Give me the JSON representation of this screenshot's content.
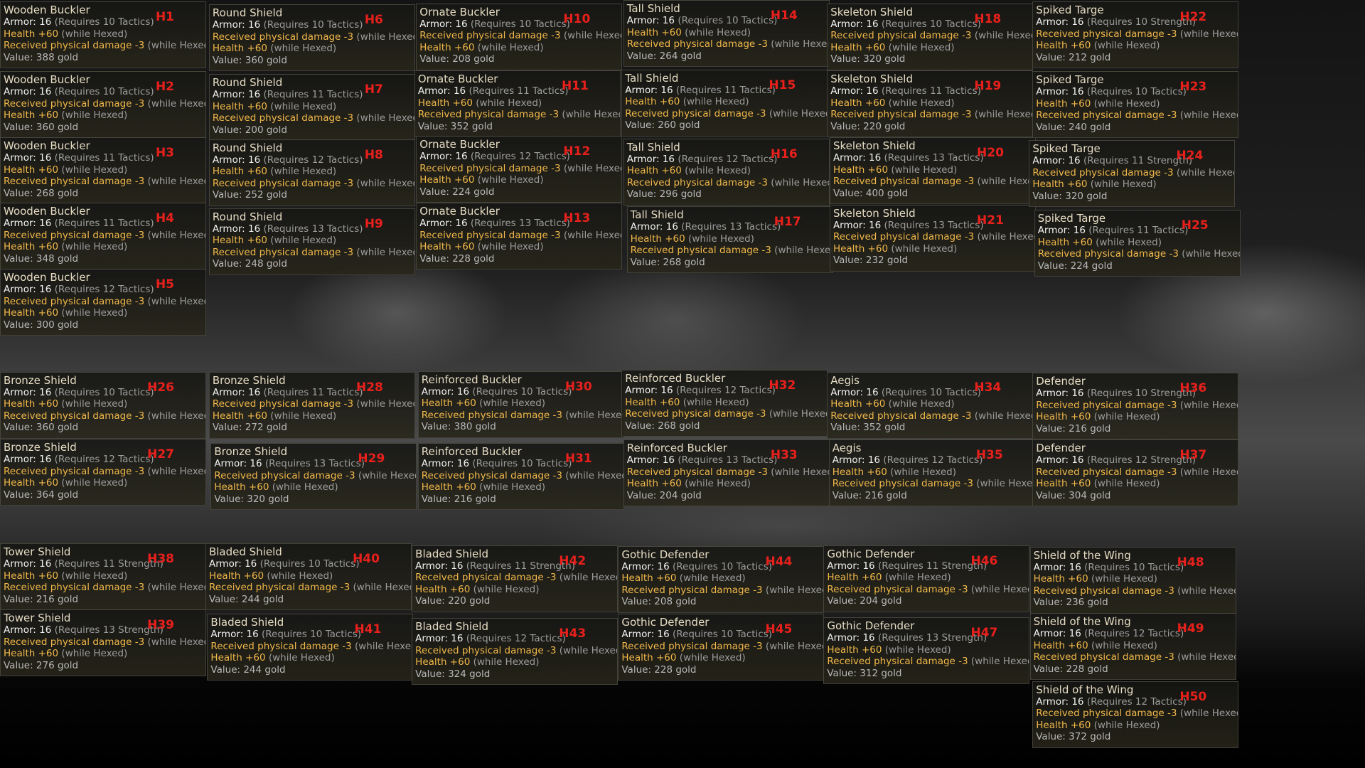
{
  "items": [
    {
      "name": "Wooden Buckler",
      "tag": "H1",
      "armor": "Armor: 16",
      "req": "(Requires 10 Tactics)",
      "mods": [
        {
          "text": "Health +60",
          "cond": "(while Hexed)"
        },
        {
          "text": "Received physical damage -3",
          "cond": "(while Hexed)"
        }
      ],
      "value": "Value: 388 gold"
    },
    {
      "name": "Wooden Buckler",
      "tag": "H2",
      "armor": "Armor: 16",
      "req": "(Requires 10 Tactics)",
      "mods": [
        {
          "text": "Received physical damage -3",
          "cond": "(while Hexed)"
        },
        {
          "text": "Health +60",
          "cond": "(while Hexed)"
        }
      ],
      "value": "Value: 360 gold"
    },
    {
      "name": "Wooden Buckler",
      "tag": "H3",
      "armor": "Armor: 16",
      "req": "(Requires 11 Tactics)",
      "mods": [
        {
          "text": "Health +60",
          "cond": "(while Hexed)"
        },
        {
          "text": "Received physical damage -3",
          "cond": "(while Hexed)"
        }
      ],
      "value": "Value: 268 gold"
    },
    {
      "name": "Wooden Buckler",
      "tag": "H4",
      "armor": "Armor: 16",
      "req": "(Requires 11 Tactics)",
      "mods": [
        {
          "text": "Received physical damage -3",
          "cond": "(while Hexed)"
        },
        {
          "text": "Health +60",
          "cond": "(while Hexed)"
        }
      ],
      "value": "Value: 348 gold"
    },
    {
      "name": "Wooden Buckler",
      "tag": "H5",
      "armor": "Armor: 16",
      "req": "(Requires 12 Tactics)",
      "mods": [
        {
          "text": "Received physical damage -3",
          "cond": "(while Hexed)"
        },
        {
          "text": "Health +60",
          "cond": "(while Hexed)"
        }
      ],
      "value": "Value: 300 gold"
    },
    {
      "name": "Round Shield",
      "tag": "H6",
      "armor": "Armor: 16",
      "req": "(Requires 10 Tactics)",
      "mods": [
        {
          "text": "Received physical damage -3",
          "cond": "(while Hexed)"
        },
        {
          "text": "Health +60",
          "cond": "(while Hexed)"
        }
      ],
      "value": "Value: 360 gold"
    },
    {
      "name": "Round Shield",
      "tag": "H7",
      "armor": "Armor: 16",
      "req": "(Requires 11 Tactics)",
      "mods": [
        {
          "text": "Health +60",
          "cond": "(while Hexed)"
        },
        {
          "text": "Received physical damage -3",
          "cond": "(while Hexed)"
        }
      ],
      "value": "Value: 200 gold"
    },
    {
      "name": "Round Shield",
      "tag": "H8",
      "armor": "Armor: 16",
      "req": "(Requires 12 Tactics)",
      "mods": [
        {
          "text": "Health +60",
          "cond": "(while Hexed)"
        },
        {
          "text": "Received physical damage -3",
          "cond": "(while Hexed)"
        }
      ],
      "value": "Value: 252 gold"
    },
    {
      "name": "Round Shield",
      "tag": "H9",
      "armor": "Armor: 16",
      "req": "(Requires 13 Tactics)",
      "mods": [
        {
          "text": "Health +60",
          "cond": "(while Hexed)"
        },
        {
          "text": "Received physical damage -3",
          "cond": "(while Hexed)"
        }
      ],
      "value": "Value: 248 gold"
    },
    {
      "name": "Ornate Buckler",
      "tag": "H10",
      "armor": "Armor: 16",
      "req": "(Requires 10 Tactics)",
      "mods": [
        {
          "text": "Received physical damage -3",
          "cond": "(while Hexed)"
        },
        {
          "text": "Health +60",
          "cond": "(while Hexed)"
        }
      ],
      "value": "Value: 208 gold"
    },
    {
      "name": "Ornate Buckler",
      "tag": "H11",
      "armor": "Armor: 16",
      "req": "(Requires 11 Tactics)",
      "mods": [
        {
          "text": "Health +60",
          "cond": "(while Hexed)"
        },
        {
          "text": "Received physical damage -3",
          "cond": "(while Hexed)"
        }
      ],
      "value": "Value: 352 gold"
    },
    {
      "name": "Ornate Buckler",
      "tag": "H12",
      "armor": "Armor: 16",
      "req": "(Requires 12 Tactics)",
      "mods": [
        {
          "text": "Received physical damage -3",
          "cond": "(while Hexed)"
        },
        {
          "text": "Health +60",
          "cond": "(while Hexed)"
        }
      ],
      "value": "Value: 224 gold"
    },
    {
      "name": "Ornate Buckler",
      "tag": "H13",
      "armor": "Armor: 16",
      "req": "(Requires 13 Tactics)",
      "mods": [
        {
          "text": "Received physical damage -3",
          "cond": "(while Hexed)"
        },
        {
          "text": "Health +60",
          "cond": "(while Hexed)"
        }
      ],
      "value": "Value: 228 gold"
    },
    {
      "name": "Tall Shield",
      "tag": "H14",
      "armor": "Armor: 16",
      "req": "(Requires 10 Tactics)",
      "mods": [
        {
          "text": "Health +60",
          "cond": "(while Hexed)"
        },
        {
          "text": "Received physical damage -3",
          "cond": "(while Hexed)"
        }
      ],
      "value": "Value: 264 gold"
    },
    {
      "name": "Tall Shield",
      "tag": "H15",
      "armor": "Armor: 16",
      "req": "(Requires 11 Tactics)",
      "mods": [
        {
          "text": "Health +60",
          "cond": "(while Hexed)"
        },
        {
          "text": "Received physical damage -3",
          "cond": "(while Hexed)"
        }
      ],
      "value": "Value: 260 gold"
    },
    {
      "name": "Tall Shield",
      "tag": "H16",
      "armor": "Armor: 16",
      "req": "(Requires 12 Tactics)",
      "mods": [
        {
          "text": "Health +60",
          "cond": "(while Hexed)"
        },
        {
          "text": "Received physical damage -3",
          "cond": "(while Hexed)"
        }
      ],
      "value": "Value: 296 gold"
    },
    {
      "name": "Tall Shield",
      "tag": "H17",
      "armor": "Armor: 16",
      "req": "(Requires 13 Tactics)",
      "mods": [
        {
          "text": "Health +60",
          "cond": "(while Hexed)"
        },
        {
          "text": "Received physical damage -3",
          "cond": "(while Hexed)"
        }
      ],
      "value": "Value: 268 gold"
    },
    {
      "name": "Skeleton Shield",
      "tag": "H18",
      "armor": "Armor: 16",
      "req": "(Requires 10 Tactics)",
      "mods": [
        {
          "text": "Received physical damage -3",
          "cond": "(while Hexed)"
        },
        {
          "text": "Health +60",
          "cond": "(while Hexed)"
        }
      ],
      "value": "Value: 320 gold"
    },
    {
      "name": "Skeleton Shield",
      "tag": "H19",
      "armor": "Armor: 16",
      "req": "(Requires 11 Tactics)",
      "mods": [
        {
          "text": "Health +60",
          "cond": "(while Hexed)"
        },
        {
          "text": "Received physical damage -3",
          "cond": "(while Hexed)"
        }
      ],
      "value": "Value: 220 gold"
    },
    {
      "name": "Skeleton Shield",
      "tag": "H20",
      "armor": "Armor: 16",
      "req": "(Requires 13 Tactics)",
      "mods": [
        {
          "text": "Health +60",
          "cond": "(while Hexed)"
        },
        {
          "text": "Received physical damage -3",
          "cond": "(while Hexed)"
        }
      ],
      "value": "Value: 400 gold"
    },
    {
      "name": "Skeleton Shield",
      "tag": "H21",
      "armor": "Armor: 16",
      "req": "(Requires 13 Tactics)",
      "mods": [
        {
          "text": "Received physical damage -3",
          "cond": "(while Hexed)"
        },
        {
          "text": "Health +60",
          "cond": "(while Hexed)"
        }
      ],
      "value": "Value: 232 gold"
    },
    {
      "name": "Spiked Targe",
      "tag": "H22",
      "armor": "Armor: 16",
      "req": "(Requires 10 Strength)",
      "mods": [
        {
          "text": "Received physical damage -3",
          "cond": "(while Hexed)"
        },
        {
          "text": "Health +60",
          "cond": "(while Hexed)"
        }
      ],
      "value": "Value: 212 gold"
    },
    {
      "name": "Spiked Targe",
      "tag": "H23",
      "armor": "Armor: 16",
      "req": "(Requires 10 Tactics)",
      "mods": [
        {
          "text": "Health +60",
          "cond": "(while Hexed)"
        },
        {
          "text": "Received physical damage -3",
          "cond": "(while Hexed)"
        }
      ],
      "value": "Value: 240 gold"
    },
    {
      "name": "Spiked Targe",
      "tag": "H24",
      "armor": "Armor: 16",
      "req": "(Requires 11 Strength)",
      "mods": [
        {
          "text": "Received physical damage -3",
          "cond": "(while Hexed)"
        },
        {
          "text": "Health +60",
          "cond": "(while Hexed)"
        }
      ],
      "value": "Value: 320 gold"
    },
    {
      "name": "Spiked Targe",
      "tag": "H25",
      "armor": "Armor: 16",
      "req": "(Requires 11 Tactics)",
      "mods": [
        {
          "text": "Health +60",
          "cond": "(while Hexed)"
        },
        {
          "text": "Received physical damage -3",
          "cond": "(while Hexed)"
        }
      ],
      "value": "Value: 224 gold"
    },
    {
      "name": "Bronze Shield",
      "tag": "H26",
      "armor": "Armor: 16",
      "req": "(Requires 10 Tactics)",
      "mods": [
        {
          "text": "Health +60",
          "cond": "(while Hexed)"
        },
        {
          "text": "Received physical damage -3",
          "cond": "(while Hexed)"
        }
      ],
      "value": "Value: 360 gold"
    },
    {
      "name": "Bronze Shield",
      "tag": "H27",
      "armor": "Armor: 16",
      "req": "(Requires 12 Tactics)",
      "mods": [
        {
          "text": "Received physical damage -3",
          "cond": "(while Hexed)"
        },
        {
          "text": "Health +60",
          "cond": "(while Hexed)"
        }
      ],
      "value": "Value: 364 gold"
    },
    {
      "name": "Bronze Shield",
      "tag": "H28",
      "armor": "Armor: 16",
      "req": "(Requires 11 Tactics)",
      "mods": [
        {
          "text": "Received physical damage -3",
          "cond": "(while Hexed)"
        },
        {
          "text": "Health +60",
          "cond": "(while Hexed)"
        }
      ],
      "value": "Value: 272 gold"
    },
    {
      "name": "Bronze Shield",
      "tag": "H29",
      "armor": "Armor: 16",
      "req": "(Requires 13 Tactics)",
      "mods": [
        {
          "text": "Received physical damage -3",
          "cond": "(while Hexed)"
        },
        {
          "text": "Health +60",
          "cond": "(while Hexed)"
        }
      ],
      "value": "Value: 320 gold"
    },
    {
      "name": "Reinforced Buckler",
      "tag": "H30",
      "armor": "Armor: 16",
      "req": "(Requires 10 Tactics)",
      "mods": [
        {
          "text": "Health +60",
          "cond": "(while Hexed)"
        },
        {
          "text": "Received physical damage -3",
          "cond": "(while Hexed)"
        }
      ],
      "value": "Value: 380 gold"
    },
    {
      "name": "Reinforced Buckler",
      "tag": "H31",
      "armor": "Armor: 16",
      "req": "(Requires 10 Tactics)",
      "mods": [
        {
          "text": "Received physical damage -3",
          "cond": "(while Hexed)"
        },
        {
          "text": "Health +60",
          "cond": "(while Hexed)"
        }
      ],
      "value": "Value: 216 gold"
    },
    {
      "name": "Reinforced Buckler",
      "tag": "H32",
      "armor": "Armor: 16",
      "req": "(Requires 12 Tactics)",
      "mods": [
        {
          "text": "Health +60",
          "cond": "(while Hexed)"
        },
        {
          "text": "Received physical damage -3",
          "cond": "(while Hexed)"
        }
      ],
      "value": "Value: 268 gold"
    },
    {
      "name": "Reinforced Buckler",
      "tag": "H33",
      "armor": "Armor: 16",
      "req": "(Requires 13 Tactics)",
      "mods": [
        {
          "text": "Received physical damage -3",
          "cond": "(while Hexed)"
        },
        {
          "text": "Health +60",
          "cond": "(while Hexed)"
        }
      ],
      "value": "Value: 204 gold"
    },
    {
      "name": "Aegis",
      "tag": "H34",
      "armor": "Armor: 16",
      "req": "(Requires 10 Tactics)",
      "mods": [
        {
          "text": "Health +60",
          "cond": "(while Hexed)"
        },
        {
          "text": "Received physical damage -3",
          "cond": "(while Hexed)"
        }
      ],
      "value": "Value: 352 gold"
    },
    {
      "name": "Aegis",
      "tag": "H35",
      "armor": "Armor: 16",
      "req": "(Requires 12 Tactics)",
      "mods": [
        {
          "text": "Health +60",
          "cond": "(while Hexed)"
        },
        {
          "text": "Received physical damage -3",
          "cond": "(while Hexed)"
        }
      ],
      "value": "Value: 216 gold"
    },
    {
      "name": "Defender",
      "tag": "H36",
      "armor": "Armor: 16",
      "req": "(Requires 10 Strength)",
      "mods": [
        {
          "text": "Received physical damage -3",
          "cond": "(while Hexed)"
        },
        {
          "text": "Health +60",
          "cond": "(while Hexed)"
        }
      ],
      "value": "Value: 216 gold"
    },
    {
      "name": "Defender",
      "tag": "H37",
      "armor": "Armor: 16",
      "req": "(Requires 12 Strength)",
      "mods": [
        {
          "text": "Received physical damage -3",
          "cond": "(while Hexed)"
        },
        {
          "text": "Health +60",
          "cond": "(while Hexed)"
        }
      ],
      "value": "Value: 304 gold"
    },
    {
      "name": "Tower Shield",
      "tag": "H38",
      "armor": "Armor: 16",
      "req": "(Requires 11 Strength)",
      "mods": [
        {
          "text": "Health +60",
          "cond": "(while Hexed)"
        },
        {
          "text": "Received physical damage -3",
          "cond": "(while Hexed)"
        }
      ],
      "value": "Value: 216 gold"
    },
    {
      "name": "Tower Shield",
      "tag": "H39",
      "armor": "Armor: 16",
      "req": "(Requires 13 Strength)",
      "mods": [
        {
          "text": "Received physical damage -3",
          "cond": "(while Hexed)"
        },
        {
          "text": "Health +60",
          "cond": "(while Hexed)"
        }
      ],
      "value": "Value: 276 gold"
    },
    {
      "name": "Bladed Shield",
      "tag": "H40",
      "armor": "Armor: 16",
      "req": "(Requires 10 Tactics)",
      "mods": [
        {
          "text": "Health +60",
          "cond": "(while Hexed)"
        },
        {
          "text": "Received physical damage -3",
          "cond": "(while Hexed)"
        }
      ],
      "value": "Value: 244 gold"
    },
    {
      "name": "Bladed Shield",
      "tag": "H41",
      "armor": "Armor: 16",
      "req": "(Requires 10 Tactics)",
      "mods": [
        {
          "text": "Received physical damage -3",
          "cond": "(while Hexed)"
        },
        {
          "text": "Health +60",
          "cond": "(while Hexed)"
        }
      ],
      "value": "Value: 244 gold"
    },
    {
      "name": "Bladed Shield",
      "tag": "H42",
      "armor": "Armor: 16",
      "req": "(Requires 11 Strength)",
      "mods": [
        {
          "text": "Received physical damage -3",
          "cond": "(while Hexed)"
        },
        {
          "text": "Health +60",
          "cond": "(while Hexed)"
        }
      ],
      "value": "Value: 220 gold"
    },
    {
      "name": "Bladed Shield",
      "tag": "H43",
      "armor": "Armor: 16",
      "req": "(Requires 12 Tactics)",
      "mods": [
        {
          "text": "Received physical damage -3",
          "cond": "(while Hexed)"
        },
        {
          "text": "Health +60",
          "cond": "(while Hexed)"
        }
      ],
      "value": "Value: 324 gold"
    },
    {
      "name": "Gothic Defender",
      "tag": "H44",
      "armor": "Armor: 16",
      "req": "(Requires 10 Tactics)",
      "mods": [
        {
          "text": "Health +60",
          "cond": "(while Hexed)"
        },
        {
          "text": "Received physical damage -3",
          "cond": "(while Hexed)"
        }
      ],
      "value": "Value: 208 gold"
    },
    {
      "name": "Gothic Defender",
      "tag": "H45",
      "armor": "Armor: 16",
      "req": "(Requires 10 Tactics)",
      "mods": [
        {
          "text": "Received physical damage -3",
          "cond": "(while Hexed)"
        },
        {
          "text": "Health +60",
          "cond": "(while Hexed)"
        }
      ],
      "value": "Value: 228 gold"
    },
    {
      "name": "Gothic Defender",
      "tag": "H46",
      "armor": "Armor: 16",
      "req": "(Requires 11 Strength)",
      "mods": [
        {
          "text": "Health +60",
          "cond": "(while Hexed)"
        },
        {
          "text": "Received physical damage -3",
          "cond": "(while Hexed)"
        }
      ],
      "value": "Value: 204 gold"
    },
    {
      "name": "Gothic Defender",
      "tag": "H47",
      "armor": "Armor: 16",
      "req": "(Requires 13 Strength)",
      "mods": [
        {
          "text": "Health +60",
          "cond": "(while Hexed)"
        },
        {
          "text": "Received physical damage -3",
          "cond": "(while Hexed)"
        }
      ],
      "value": "Value: 312 gold"
    },
    {
      "name": "Shield of the Wing",
      "tag": "H48",
      "armor": "Armor: 16",
      "req": "(Requires 10 Tactics)",
      "mods": [
        {
          "text": "Health +60",
          "cond": "(while Hexed)"
        },
        {
          "text": "Received physical damage -3",
          "cond": "(while Hexed)"
        }
      ],
      "value": "Value: 236 gold"
    },
    {
      "name": "Shield of the Wing",
      "tag": "H49",
      "armor": "Armor: 16",
      "req": "(Requires 12 Tactics)",
      "mods": [
        {
          "text": "Health +60",
          "cond": "(while Hexed)"
        },
        {
          "text": "Received physical damage -3",
          "cond": "(while Hexed)"
        }
      ],
      "value": "Value: 228 gold"
    },
    {
      "name": "Shield of the Wing",
      "tag": "H50",
      "armor": "Armor: 16",
      "req": "(Requires 12 Tactics)",
      "mods": [
        {
          "text": "Received physical damage -3",
          "cond": "(while Hexed)"
        },
        {
          "text": "Health +60",
          "cond": "(while Hexed)"
        }
      ],
      "value": "Value: 372 gold"
    }
  ]
}
